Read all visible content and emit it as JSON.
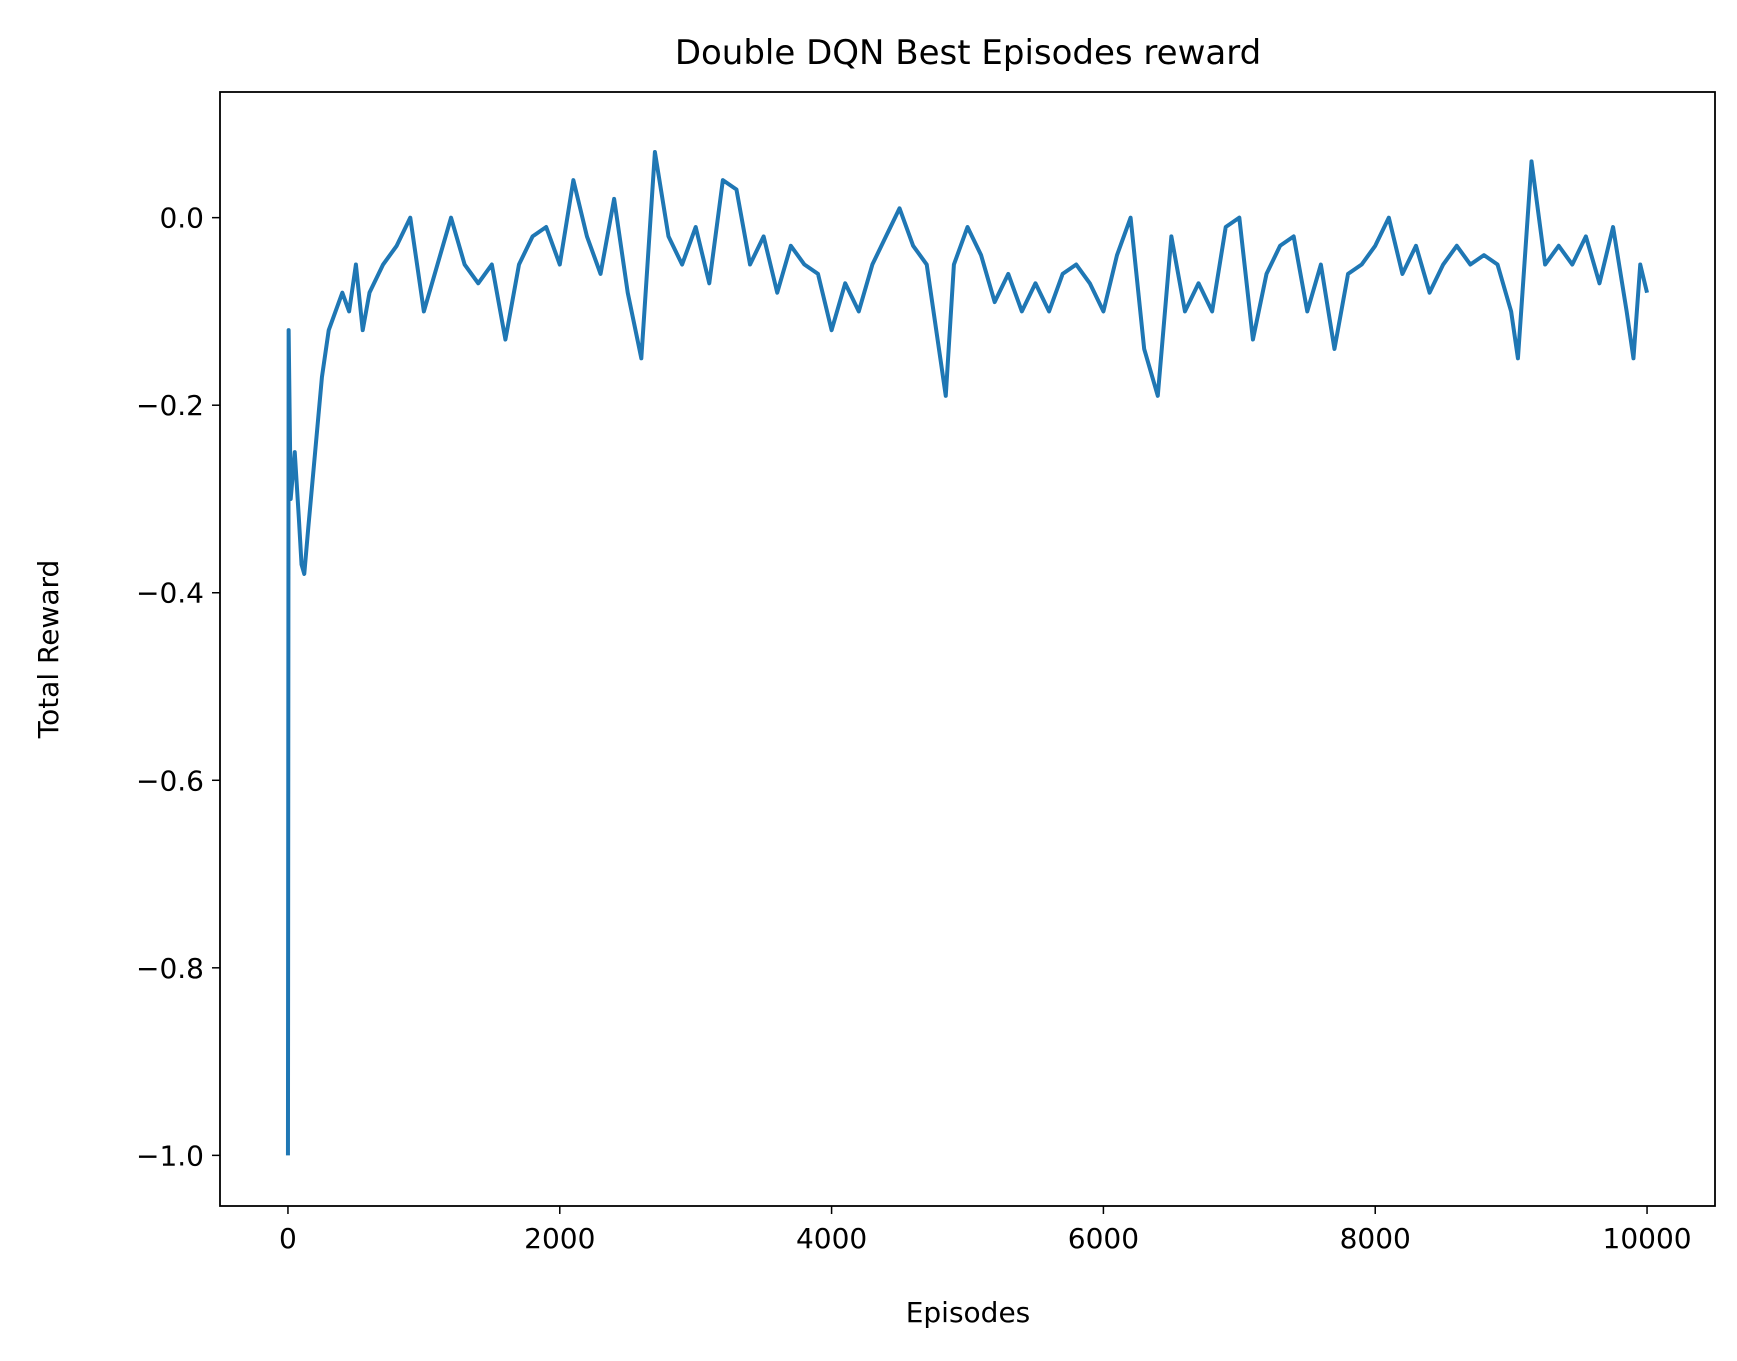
{
  "chart_data": {
    "type": "line",
    "title": "Double DQN Best Episodes reward",
    "xlabel": "Episodes",
    "ylabel": "Total Reward",
    "x": [
      0,
      5,
      20,
      50,
      80,
      100,
      120,
      150,
      200,
      250,
      300,
      350,
      400,
      450,
      500,
      550,
      600,
      700,
      800,
      900,
      1000,
      1100,
      1200,
      1300,
      1400,
      1500,
      1600,
      1700,
      1800,
      1900,
      2000,
      2100,
      2200,
      2300,
      2400,
      2500,
      2600,
      2700,
      2800,
      2900,
      3000,
      3100,
      3200,
      3300,
      3400,
      3500,
      3600,
      3700,
      3800,
      3900,
      4000,
      4100,
      4200,
      4300,
      4400,
      4500,
      4600,
      4700,
      4800,
      4840,
      4900,
      5000,
      5100,
      5200,
      5300,
      5400,
      5500,
      5600,
      5700,
      5800,
      5900,
      6000,
      6100,
      6200,
      6300,
      6400,
      6500,
      6600,
      6700,
      6800,
      6900,
      7000,
      7100,
      7200,
      7300,
      7400,
      7500,
      7600,
      7700,
      7800,
      7900,
      8000,
      8100,
      8200,
      8300,
      8400,
      8500,
      8600,
      8700,
      8800,
      8900,
      9000,
      9050,
      9150,
      9250,
      9350,
      9450,
      9550,
      9650,
      9750,
      9850,
      9900,
      9950,
      10000
    ],
    "series": [
      {
        "name": "reward",
        "color": "#1f77b4",
        "values": [
          -1.0,
          -0.12,
          -0.3,
          -0.25,
          -0.32,
          -0.37,
          -0.38,
          -0.33,
          -0.25,
          -0.17,
          -0.12,
          -0.1,
          -0.08,
          -0.1,
          -0.05,
          -0.12,
          -0.08,
          -0.05,
          -0.03,
          0.0,
          -0.1,
          -0.05,
          0.0,
          -0.05,
          -0.07,
          -0.05,
          -0.13,
          -0.05,
          -0.02,
          -0.01,
          -0.05,
          0.04,
          -0.02,
          -0.06,
          0.02,
          -0.08,
          -0.15,
          0.07,
          -0.02,
          -0.05,
          -0.01,
          -0.07,
          0.04,
          0.03,
          -0.05,
          -0.02,
          -0.08,
          -0.03,
          -0.05,
          -0.06,
          -0.12,
          -0.07,
          -0.1,
          -0.05,
          -0.02,
          0.01,
          -0.03,
          -0.05,
          -0.15,
          -0.19,
          -0.05,
          -0.01,
          -0.04,
          -0.09,
          -0.06,
          -0.1,
          -0.07,
          -0.1,
          -0.06,
          -0.05,
          -0.07,
          -0.1,
          -0.04,
          0.0,
          -0.14,
          -0.19,
          -0.02,
          -0.1,
          -0.07,
          -0.1,
          -0.01,
          0.0,
          -0.13,
          -0.06,
          -0.03,
          -0.02,
          -0.1,
          -0.05,
          -0.14,
          -0.06,
          -0.05,
          -0.03,
          0.0,
          -0.06,
          -0.03,
          -0.08,
          -0.05,
          -0.03,
          -0.05,
          -0.04,
          -0.05,
          -0.1,
          -0.15,
          0.06,
          -0.05,
          -0.03,
          -0.05,
          -0.02,
          -0.07,
          -0.01,
          -0.1,
          -0.15,
          -0.05,
          -0.08
        ]
      }
    ],
    "xlim": [
      -500,
      10500
    ],
    "xticks": [
      0,
      2000,
      4000,
      6000,
      8000,
      10000
    ],
    "ylim": [
      -1.054,
      0.134
    ],
    "yticks": [
      {
        "value": -1.0,
        "label": "−1.0"
      },
      {
        "value": -0.8,
        "label": "−0.8"
      },
      {
        "value": -0.6,
        "label": "−0.6"
      },
      {
        "value": -0.4,
        "label": "−0.4"
      },
      {
        "value": -0.2,
        "label": "−0.2"
      },
      {
        "value": 0.0,
        "label": "0.0"
      }
    ],
    "grid": false
  }
}
